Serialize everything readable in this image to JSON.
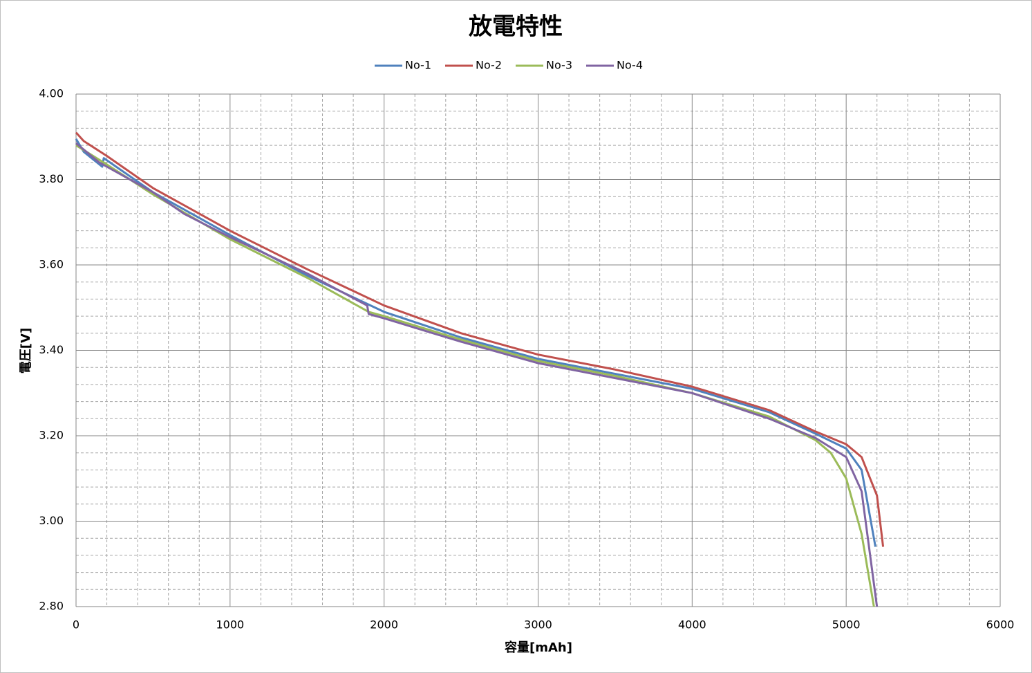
{
  "chart_data": {
    "type": "line",
    "title": "放電特性",
    "x_label": "容量[mAh]",
    "y_label": "電圧[V]",
    "xlim": [
      0,
      6000
    ],
    "xticks": [
      0,
      1000,
      2000,
      3000,
      4000,
      5000,
      6000
    ],
    "ylim": [
      2.8,
      4.0
    ],
    "yticks": [
      {
        "value": 2.8,
        "label": "2.80"
      },
      {
        "value": 3.0,
        "label": "3.00"
      },
      {
        "value": 3.2,
        "label": "3.20"
      },
      {
        "value": 3.4,
        "label": "3.40"
      },
      {
        "value": 3.6,
        "label": "3.60"
      },
      {
        "value": 3.8,
        "label": "3.80"
      },
      {
        "value": 4.0,
        "label": "4.00"
      }
    ],
    "grid": true,
    "minor_grid": true,
    "legend": "top",
    "series": [
      {
        "name": "No-1",
        "color": "#4f81bd",
        "x": [
          0,
          50,
          170,
          180,
          500,
          1000,
          1500,
          2000,
          2500,
          3000,
          3500,
          4000,
          4500,
          4800,
          5000,
          5100,
          5190
        ],
        "values": [
          3.895,
          3.865,
          3.83,
          3.85,
          3.77,
          3.67,
          3.575,
          3.49,
          3.43,
          3.38,
          3.345,
          3.31,
          3.255,
          3.205,
          3.17,
          3.12,
          2.94
        ]
      },
      {
        "name": "No-2",
        "color": "#c0504d",
        "x": [
          0,
          50,
          200,
          500,
          1000,
          1500,
          2000,
          2500,
          3000,
          3500,
          4000,
          4500,
          4800,
          5000,
          5100,
          5200,
          5240
        ],
        "values": [
          3.91,
          3.89,
          3.855,
          3.78,
          3.68,
          3.59,
          3.505,
          3.44,
          3.39,
          3.355,
          3.315,
          3.26,
          3.21,
          3.18,
          3.15,
          3.06,
          2.94
        ]
      },
      {
        "name": "No-3",
        "color": "#9bbb59",
        "x": [
          0,
          200,
          500,
          1000,
          1500,
          1900,
          2000,
          2500,
          3000,
          3500,
          4000,
          4500,
          4800,
          4900,
          5000,
          5100,
          5180
        ],
        "values": [
          3.88,
          3.835,
          3.765,
          3.66,
          3.57,
          3.49,
          3.48,
          3.425,
          3.375,
          3.34,
          3.3,
          3.245,
          3.19,
          3.16,
          3.1,
          2.97,
          2.8
        ]
      },
      {
        "name": "No-4",
        "color": "#8064a2",
        "x": [
          0,
          150,
          200,
          500,
          700,
          1000,
          1500,
          1890,
          1900,
          2000,
          2500,
          3000,
          3500,
          4000,
          4500,
          4800,
          5000,
          5100,
          5200
        ],
        "values": [
          3.885,
          3.84,
          3.83,
          3.77,
          3.72,
          3.665,
          3.58,
          3.505,
          3.485,
          3.475,
          3.42,
          3.37,
          3.335,
          3.3,
          3.24,
          3.195,
          3.15,
          3.07,
          2.8
        ]
      }
    ]
  }
}
